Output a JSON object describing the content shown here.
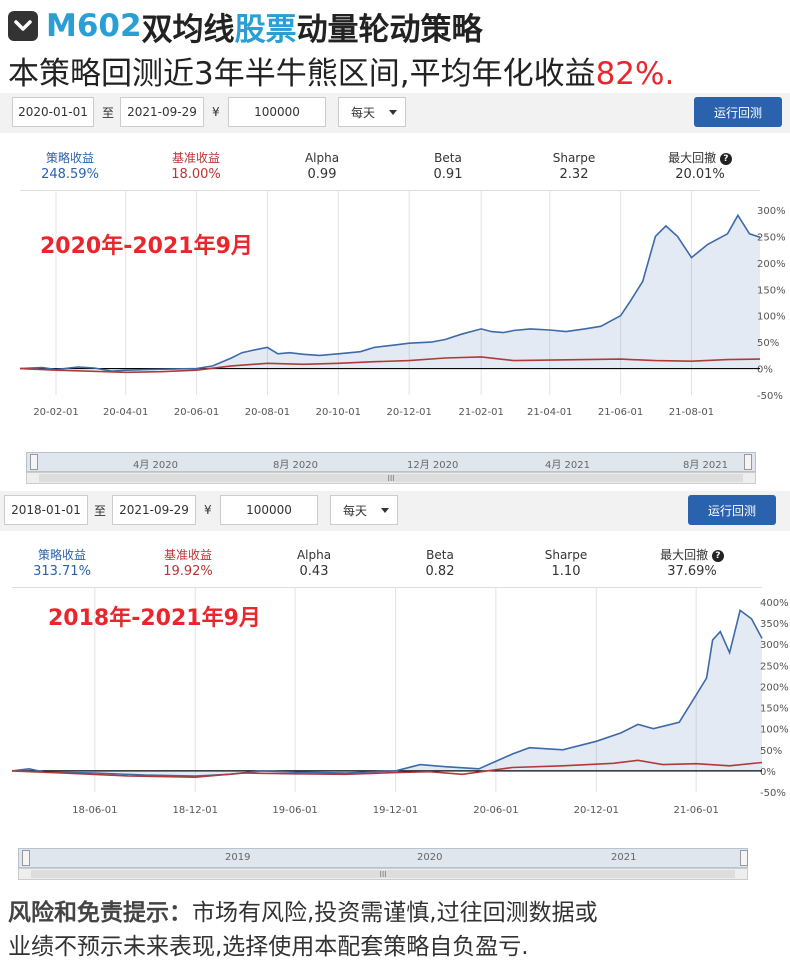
{
  "header": {
    "code": "M602",
    "title_a": "双均线",
    "title_b": "股票",
    "title_c": "动量轮动策略",
    "subtitle_a": "本策略回测近3年半牛熊区间,平均年化收益",
    "subtitle_b": "82%."
  },
  "panels": [
    {
      "start_date": "2020-01-01",
      "to": "至",
      "end_date": "2021-09-29",
      "currency": "¥",
      "capital": "100000",
      "frequency": "每天",
      "run_label": "运行回测",
      "stats": [
        {
          "key": "策略收益",
          "value": "248.59%"
        },
        {
          "key": "基准收益",
          "value": "18.00%"
        },
        {
          "key": "Alpha",
          "value": "0.99"
        },
        {
          "key": "Beta",
          "value": "0.91"
        },
        {
          "key": "Sharpe",
          "value": "2.32"
        },
        {
          "key": "最大回撤",
          "value": "20.01%"
        }
      ],
      "period_label": "2020年-2021年9月",
      "navigator_labels": [
        "4月 2020",
        "8月 2020",
        "12月 2020",
        "4月 2021",
        "8月 2021"
      ]
    },
    {
      "start_date": "2018-01-01",
      "to": "至",
      "end_date": "2021-09-29",
      "currency": "¥",
      "capital": "100000",
      "frequency": "每天",
      "run_label": "运行回测",
      "stats": [
        {
          "key": "策略收益",
          "value": "313.71%"
        },
        {
          "key": "基准收益",
          "value": "19.92%"
        },
        {
          "key": "Alpha",
          "value": "0.43"
        },
        {
          "key": "Beta",
          "value": "0.82"
        },
        {
          "key": "Sharpe",
          "value": "1.10"
        },
        {
          "key": "最大回撤",
          "value": "37.69%"
        }
      ],
      "period_label": "2018年-2021年9月",
      "navigator_labels": [
        "2019",
        "2020",
        "2021"
      ]
    }
  ],
  "disclaimer": {
    "label": "风险和免责提示：",
    "text_1": "市场有风险,投资需谨慎,过往回测数据或",
    "text_2": "业绩不预示未来表现,选择使用本配套策略自负盈亏."
  },
  "colors": {
    "strategy": "#3d6aa8",
    "benchmark": "#b03a3a",
    "accent_red": "#e8262b",
    "accent_blue": "#2a9fd6"
  },
  "chart_data": [
    {
      "type": "area",
      "x_ticks": [
        "20-02-01",
        "20-04-01",
        "20-06-01",
        "20-08-01",
        "20-10-01",
        "20-12-01",
        "21-02-01",
        "21-04-01",
        "21-06-01",
        "21-08-01"
      ],
      "y_ticks": [
        "300%",
        "250%",
        "200%",
        "150%",
        "100%",
        "50%",
        "0%",
        "-50%"
      ],
      "ylim": [
        -50,
        300
      ],
      "xlim": [
        "2020-01-01",
        "2021-09-29"
      ],
      "series": [
        {
          "name": "策略收益",
          "points": [
            [
              "2020-01-01",
              0
            ],
            [
              "2020-01-20",
              2
            ],
            [
              "2020-02-01",
              -2
            ],
            [
              "2020-02-20",
              3
            ],
            [
              "2020-03-05",
              1
            ],
            [
              "2020-03-20",
              -5
            ],
            [
              "2020-04-01",
              -3
            ],
            [
              "2020-04-20",
              -2
            ],
            [
              "2020-05-10",
              -1
            ],
            [
              "2020-06-01",
              0
            ],
            [
              "2020-06-15",
              5
            ],
            [
              "2020-07-01",
              20
            ],
            [
              "2020-07-10",
              30
            ],
            [
              "2020-07-20",
              35
            ],
            [
              "2020-08-01",
              40
            ],
            [
              "2020-08-10",
              28
            ],
            [
              "2020-08-20",
              30
            ],
            [
              "2020-09-01",
              27
            ],
            [
              "2020-09-15",
              25
            ],
            [
              "2020-10-01",
              28
            ],
            [
              "2020-10-20",
              32
            ],
            [
              "2020-11-01",
              40
            ],
            [
              "2020-11-20",
              45
            ],
            [
              "2020-12-01",
              48
            ],
            [
              "2020-12-20",
              50
            ],
            [
              "2021-01-01",
              55
            ],
            [
              "2021-01-15",
              65
            ],
            [
              "2021-02-01",
              75
            ],
            [
              "2021-02-10",
              70
            ],
            [
              "2021-02-20",
              68
            ],
            [
              "2021-03-01",
              72
            ],
            [
              "2021-03-15",
              75
            ],
            [
              "2021-04-01",
              73
            ],
            [
              "2021-04-15",
              70
            ],
            [
              "2021-05-01",
              75
            ],
            [
              "2021-05-15",
              80
            ],
            [
              "2021-06-01",
              100
            ],
            [
              "2021-06-10",
              130
            ],
            [
              "2021-06-20",
              165
            ],
            [
              "2021-07-01",
              250
            ],
            [
              "2021-07-10",
              270
            ],
            [
              "2021-07-20",
              250
            ],
            [
              "2021-08-01",
              210
            ],
            [
              "2021-08-15",
              235
            ],
            [
              "2021-09-01",
              255
            ],
            [
              "2021-09-10",
              290
            ],
            [
              "2021-09-20",
              255
            ],
            [
              "2021-09-29",
              248.59
            ]
          ]
        },
        {
          "name": "基准收益",
          "points": [
            [
              "2020-01-01",
              0
            ],
            [
              "2020-02-01",
              -3
            ],
            [
              "2020-03-01",
              -5
            ],
            [
              "2020-04-01",
              -7
            ],
            [
              "2020-05-01",
              -6
            ],
            [
              "2020-06-01",
              -3
            ],
            [
              "2020-07-01",
              5
            ],
            [
              "2020-08-01",
              10
            ],
            [
              "2020-09-01",
              8
            ],
            [
              "2020-10-01",
              10
            ],
            [
              "2020-11-01",
              13
            ],
            [
              "2020-12-01",
              15
            ],
            [
              "2021-01-01",
              20
            ],
            [
              "2021-02-01",
              22
            ],
            [
              "2021-03-01",
              15
            ],
            [
              "2021-04-01",
              16
            ],
            [
              "2021-05-01",
              17
            ],
            [
              "2021-06-01",
              18
            ],
            [
              "2021-07-01",
              15
            ],
            [
              "2021-08-01",
              14
            ],
            [
              "2021-09-01",
              17
            ],
            [
              "2021-09-29",
              18.0
            ]
          ]
        }
      ]
    },
    {
      "type": "area",
      "x_ticks": [
        "18-06-01",
        "18-12-01",
        "19-06-01",
        "19-12-01",
        "20-06-01",
        "20-12-01",
        "21-06-01"
      ],
      "y_ticks": [
        "400%",
        "350%",
        "300%",
        "250%",
        "200%",
        "150%",
        "100%",
        "50%",
        "0%",
        "-50%"
      ],
      "ylim": [
        -50,
        400
      ],
      "xlim": [
        "2018-01-01",
        "2021-09-29"
      ],
      "series": [
        {
          "name": "策略收益",
          "points": [
            [
              "2018-01-01",
              0
            ],
            [
              "2018-02-01",
              5
            ],
            [
              "2018-03-01",
              -3
            ],
            [
              "2018-06-01",
              -5
            ],
            [
              "2018-09-01",
              -10
            ],
            [
              "2018-12-01",
              -12
            ],
            [
              "2019-02-01",
              -8
            ],
            [
              "2019-04-01",
              0
            ],
            [
              "2019-06-01",
              -3
            ],
            [
              "2019-09-01",
              -5
            ],
            [
              "2019-12-01",
              0
            ],
            [
              "2020-01-15",
              15
            ],
            [
              "2020-03-01",
              10
            ],
            [
              "2020-05-01",
              5
            ],
            [
              "2020-07-01",
              40
            ],
            [
              "2020-08-01",
              55
            ],
            [
              "2020-10-01",
              50
            ],
            [
              "2020-12-01",
              70
            ],
            [
              "2021-01-15",
              90
            ],
            [
              "2021-02-15",
              110
            ],
            [
              "2021-03-15",
              100
            ],
            [
              "2021-05-01",
              115
            ],
            [
              "2021-06-01",
              180
            ],
            [
              "2021-06-20",
              220
            ],
            [
              "2021-07-01",
              310
            ],
            [
              "2021-07-15",
              330
            ],
            [
              "2021-08-01",
              280
            ],
            [
              "2021-08-20",
              380
            ],
            [
              "2021-09-10",
              360
            ],
            [
              "2021-09-29",
              313.71
            ]
          ]
        },
        {
          "name": "基准收益",
          "points": [
            [
              "2018-01-01",
              0
            ],
            [
              "2018-04-01",
              -5
            ],
            [
              "2018-08-01",
              -12
            ],
            [
              "2018-12-01",
              -15
            ],
            [
              "2019-03-01",
              -5
            ],
            [
              "2019-06-01",
              -7
            ],
            [
              "2019-09-01",
              -8
            ],
            [
              "2019-12-01",
              -4
            ],
            [
              "2020-02-01",
              -2
            ],
            [
              "2020-04-01",
              -8
            ],
            [
              "2020-07-01",
              8
            ],
            [
              "2020-10-01",
              12
            ],
            [
              "2021-01-01",
              18
            ],
            [
              "2021-02-15",
              25
            ],
            [
              "2021-04-01",
              15
            ],
            [
              "2021-06-01",
              17
            ],
            [
              "2021-08-01",
              12
            ],
            [
              "2021-09-29",
              19.92
            ]
          ]
        }
      ]
    }
  ]
}
